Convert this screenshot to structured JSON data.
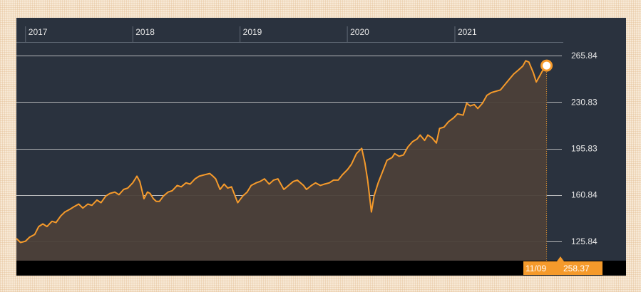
{
  "chart_data": {
    "type": "area",
    "title": "",
    "xlabel": "",
    "ylabel": "",
    "x_ticks": [
      "2017",
      "2018",
      "2019",
      "2020",
      "2021"
    ],
    "x_tick_dates": [
      "2017-01-01",
      "2018-01-01",
      "2019-01-01",
      "2020-01-01",
      "2021-01-01"
    ],
    "y_ticks": [
      "265.84",
      "230.83",
      "195.83",
      "160.84",
      "125.84"
    ],
    "y_tick_values": [
      265.84,
      230.83,
      195.83,
      160.84,
      125.84
    ],
    "ylim": [
      111.3,
      275.6
    ],
    "xlim": [
      "2016-12-01",
      "2021-12-31"
    ],
    "grid": "horizontal",
    "colors": {
      "line": "#f59a2b",
      "fill": "#4c4039",
      "plot_background": "#2a323e",
      "gridline": "#cfcfcf",
      "footer": "#000000",
      "marker_badge": "#f59a2b"
    },
    "series": [
      {
        "x": [
          "2016-12-01",
          "2016-12-15",
          "2017-01-01",
          "2017-01-15",
          "2017-02-01",
          "2017-02-15",
          "2017-03-01",
          "2017-03-15",
          "2017-04-01",
          "2017-04-15",
          "2017-05-01",
          "2017-05-15",
          "2017-06-01",
          "2017-06-15",
          "2017-07-01",
          "2017-07-15",
          "2017-08-01",
          "2017-08-15",
          "2017-09-01",
          "2017-09-15",
          "2017-10-01",
          "2017-10-15",
          "2017-11-01",
          "2017-11-15",
          "2017-12-01",
          "2017-12-15",
          "2018-01-01",
          "2018-01-15",
          "2018-01-25",
          "2018-02-08",
          "2018-02-20",
          "2018-03-01",
          "2018-03-12",
          "2018-03-22",
          "2018-04-02",
          "2018-04-15",
          "2018-05-01",
          "2018-05-15",
          "2018-06-01",
          "2018-06-15",
          "2018-07-01",
          "2018-07-15",
          "2018-08-01",
          "2018-08-15",
          "2018-09-01",
          "2018-09-20",
          "2018-10-01",
          "2018-10-10",
          "2018-10-25",
          "2018-11-08",
          "2018-11-20",
          "2018-12-03",
          "2018-12-24",
          "2019-01-10",
          "2019-01-25",
          "2019-02-08",
          "2019-02-25",
          "2019-03-10",
          "2019-03-25",
          "2019-04-10",
          "2019-04-25",
          "2019-05-10",
          "2019-05-30",
          "2019-06-15",
          "2019-07-01",
          "2019-07-15",
          "2019-08-05",
          "2019-08-15",
          "2019-09-01",
          "2019-09-15",
          "2019-10-01",
          "2019-10-15",
          "2019-11-01",
          "2019-11-15",
          "2019-12-01",
          "2019-12-15",
          "2020-01-02",
          "2020-01-15",
          "2020-02-01",
          "2020-02-19",
          "2020-03-01",
          "2020-03-10",
          "2020-03-23",
          "2020-04-01",
          "2020-04-15",
          "2020-05-01",
          "2020-05-15",
          "2020-06-01",
          "2020-06-10",
          "2020-06-25",
          "2020-07-10",
          "2020-07-25",
          "2020-08-10",
          "2020-08-25",
          "2020-09-05",
          "2020-09-20",
          "2020-10-01",
          "2020-10-15",
          "2020-10-30",
          "2020-11-10",
          "2020-11-25",
          "2020-12-10",
          "2020-12-28",
          "2021-01-10",
          "2021-01-29",
          "2021-02-10",
          "2021-02-22",
          "2021-03-08",
          "2021-03-20",
          "2021-04-05",
          "2021-04-20",
          "2021-05-05",
          "2021-05-20",
          "2021-06-05",
          "2021-06-20",
          "2021-07-05",
          "2021-07-20",
          "2021-08-05",
          "2021-08-20",
          "2021-08-30",
          "2021-09-10",
          "2021-09-25",
          "2021-10-05",
          "2021-10-15",
          "2021-10-25",
          "2021-11-09"
        ],
        "values": [
          128,
          125,
          126,
          129,
          131,
          137,
          139,
          137,
          141,
          140,
          145,
          148,
          150,
          152,
          154,
          151,
          154,
          153,
          157,
          155,
          160,
          162,
          163,
          161,
          165,
          166,
          170,
          175,
          171,
          158,
          163,
          162,
          158,
          156,
          156,
          160,
          163,
          164,
          168,
          167,
          170,
          169,
          173,
          175,
          176,
          177,
          175,
          173,
          165,
          169,
          166,
          167,
          155,
          160,
          163,
          168,
          170,
          171,
          173,
          169,
          172,
          173,
          165,
          168,
          171,
          172,
          168,
          165,
          168,
          170,
          168,
          169,
          170,
          172,
          172,
          176,
          180,
          184,
          192,
          196,
          185,
          172,
          148,
          160,
          170,
          179,
          187,
          189,
          192,
          190,
          191,
          197,
          201,
          203,
          206,
          202,
          206,
          204,
          200,
          211,
          212,
          216,
          219,
          222,
          221,
          230,
          228,
          229,
          226,
          230,
          236,
          238,
          239,
          240,
          244,
          248,
          252,
          255,
          258,
          262,
          261,
          253,
          246,
          250,
          254,
          258.37
        ]
      }
    ],
    "last_point": {
      "date": "11/09",
      "value": "258.37"
    }
  }
}
